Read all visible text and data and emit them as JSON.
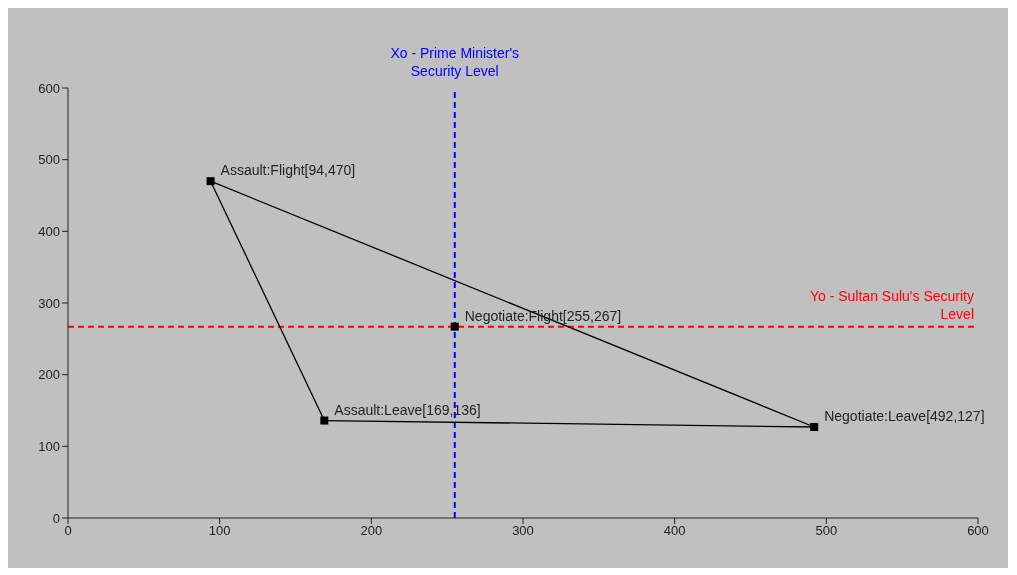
{
  "chart_data": {
    "type": "scatter",
    "xlim": [
      0,
      600
    ],
    "xticks": [
      0,
      100,
      200,
      300,
      400,
      500,
      600
    ],
    "ylim": [
      0,
      600
    ],
    "yticks": [
      0,
      100,
      200,
      300,
      400,
      500,
      600
    ],
    "grid": false,
    "series": [
      {
        "type": "line",
        "color": "#000000",
        "x": [
          94,
          492
        ],
        "values": [
          470,
          127
        ],
        "marker": "none"
      },
      {
        "type": "line",
        "color": "#000000",
        "x": [
          169,
          492
        ],
        "values": [
          136,
          127
        ],
        "marker": "none"
      },
      {
        "type": "line",
        "color": "#000000",
        "x": [
          94,
          169
        ],
        "values": [
          470,
          136
        ],
        "marker": "none"
      },
      {
        "color": "#000000",
        "x": [
          94,
          255,
          169,
          492
        ],
        "values": [
          470,
          267,
          136,
          127
        ],
        "marker": "square"
      }
    ],
    "ref_lines": [
      {
        "axis": "y",
        "value": 267,
        "label": "Yo - Sultan Sulu's Security Level",
        "color": "#ff0000",
        "line_style": "dashed"
      },
      {
        "axis": "x",
        "value": 255,
        "label": "Xo - Prime Minister's Security Level",
        "color": "#0000ff",
        "line_style": "dashed"
      }
    ],
    "annotations": [
      {
        "text": "Assault:Flight[94,470]",
        "x": 94,
        "y": 470
      },
      {
        "text": "Negotiate:Flight[255,267]",
        "x": 255,
        "y": 267
      },
      {
        "text": "Assault:Leave[169,136]",
        "x": 169,
        "y": 136
      },
      {
        "text": "Negotiate:Leave[492,127]",
        "x": 492,
        "y": 127
      }
    ]
  }
}
